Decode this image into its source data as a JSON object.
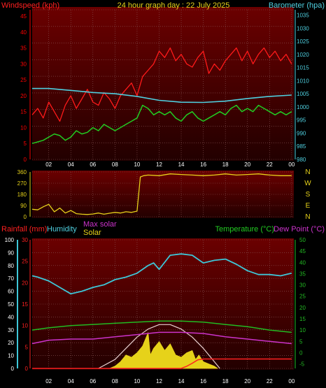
{
  "colors": {
    "background": "#000000",
    "panel_top": "#6b0000",
    "panel_bottom": "#220000",
    "grid": "#8a5a5a",
    "wind": "#ff0000",
    "gust": "#ff1a1a",
    "barometer": "#4fd0e0",
    "green_line": "#22cc22",
    "direction": "#e6d21a",
    "humidity": "#3ec7d8",
    "temperature": "#22bb22",
    "dewpoint": "#cc33cc",
    "solar": "#e6d21a",
    "max_solar": "#e8d0d0",
    "rain": "#ff2020",
    "time_axis": "#ffffff"
  },
  "chart_data": [
    {
      "type": "line",
      "title": "24 hour graph day : 22 July 2025",
      "left_label": "Windspeed (kph)",
      "right_label": "Barometer (hpa)",
      "y_left_ticks": [
        "0",
        "5",
        "10",
        "15",
        "20",
        "25",
        "30",
        "35",
        "40",
        "45"
      ],
      "y_right_ticks": [
        "980",
        "985",
        "990",
        "995",
        "1000",
        "1005",
        "1010",
        "1015",
        "1020",
        "1025",
        "1030",
        "1035"
      ],
      "ylim_left": [
        0,
        47
      ],
      "ylim_right": [
        980,
        1037
      ],
      "x_ticks": [
        "02",
        "04",
        "06",
        "08",
        "10",
        "12",
        "14",
        "16",
        "18",
        "20",
        "22",
        "00"
      ],
      "xlim_hours": [
        0.5,
        24.2
      ],
      "grid": true,
      "series": [
        {
          "key": "gust",
          "hours": [
            0.5,
            1,
            1.5,
            2,
            2.5,
            3,
            3.5,
            4,
            4.5,
            5,
            5.5,
            6,
            6.5,
            7,
            7.5,
            8,
            8.5,
            9,
            9.5,
            10,
            10.5,
            11,
            11.5,
            12,
            12.5,
            13,
            13.5,
            14,
            14.5,
            15,
            15.5,
            16,
            16.5,
            17,
            17.5,
            18,
            18.5,
            19,
            19.5,
            20,
            20.5,
            21,
            21.5,
            22,
            22.5,
            23,
            23.5,
            24
          ],
          "values": [
            14,
            16,
            13,
            18,
            15,
            12,
            17,
            20,
            16,
            19,
            22,
            18,
            17,
            21,
            19,
            16,
            20,
            22,
            24,
            20,
            26,
            28,
            30,
            34,
            32,
            35,
            31,
            33,
            30,
            29,
            32,
            34,
            27,
            30,
            28,
            31,
            33,
            35,
            31,
            34,
            30,
            33,
            35,
            32,
            34,
            31,
            33,
            30
          ]
        },
        {
          "key": "green",
          "hours": [
            0.5,
            1,
            1.5,
            2,
            2.5,
            3,
            3.5,
            4,
            4.5,
            5,
            5.5,
            6,
            6.5,
            7,
            7.5,
            8,
            8.5,
            9,
            9.5,
            10,
            10.5,
            11,
            11.5,
            12,
            12.5,
            13,
            13.5,
            14,
            14.5,
            15,
            15.5,
            16,
            16.5,
            17,
            17.5,
            18,
            18.5,
            19,
            19.5,
            20,
            20.5,
            21,
            21.5,
            22,
            22.5,
            23,
            23.5,
            24
          ],
          "values": [
            5,
            5.5,
            6,
            7,
            8,
            7.5,
            6,
            7,
            9,
            8,
            8.5,
            10,
            9,
            11,
            10,
            9,
            10,
            11,
            12,
            13,
            17,
            16,
            14,
            15,
            14,
            15,
            13,
            12,
            14,
            15,
            13,
            12,
            13,
            14,
            15,
            14,
            16,
            17,
            15,
            16,
            15,
            17,
            16,
            15,
            14,
            15,
            14,
            15
          ]
        },
        {
          "key": "barometer",
          "hours": [
            0.5,
            2,
            4,
            6,
            8,
            10,
            12,
            14,
            16,
            18,
            20,
            22,
            24
          ],
          "values": [
            1007,
            1007,
            1006.3,
            1005.5,
            1005,
            1004,
            1002.5,
            1001.8,
            1001.7,
            1002.2,
            1003.2,
            1004,
            1004.5
          ]
        }
      ]
    },
    {
      "type": "line",
      "ylabel": "Wind direction",
      "y_ticks": [
        "0",
        "90",
        "180",
        "270",
        "360"
      ],
      "ylim": [
        0,
        360
      ],
      "direction_letters": [
        "N",
        "W",
        "S",
        "E",
        "N"
      ],
      "x_ticks": [
        "02",
        "04",
        "06",
        "08",
        "10",
        "12",
        "14",
        "16",
        "18",
        "20",
        "22",
        "00"
      ],
      "xlim_hours": [
        0.5,
        24.2
      ],
      "grid": true,
      "series": [
        {
          "key": "direction",
          "hours": [
            0.5,
            1,
            1.5,
            2,
            2.5,
            3,
            3.5,
            4,
            4.5,
            5,
            5.5,
            6,
            6.5,
            7,
            7.5,
            8,
            8.5,
            9,
            9.5,
            10,
            10.3,
            10.6,
            11,
            12,
            13,
            14,
            15,
            16,
            17,
            18,
            19,
            20,
            21,
            22,
            23,
            24
          ],
          "values": [
            60,
            55,
            80,
            100,
            40,
            70,
            30,
            50,
            25,
            20,
            18,
            22,
            30,
            20,
            28,
            35,
            30,
            40,
            35,
            45,
            320,
            330,
            335,
            330,
            345,
            340,
            335,
            330,
            335,
            345,
            335,
            340,
            345,
            335,
            330,
            330
          ]
        }
      ]
    },
    {
      "type": "line",
      "left_labels": [
        "Rainfall (mm)",
        "Humidity"
      ],
      "middle_labels": [
        "Max solar",
        "Solar"
      ],
      "right_labels": [
        "Temperature (°C)",
        "Dew Point (°C)"
      ],
      "y_rain_ticks": [
        "0",
        "5",
        "10",
        "15",
        "20",
        "25",
        "30"
      ],
      "y_humidity_ticks": [
        "0",
        "10",
        "20",
        "30",
        "40",
        "50",
        "60",
        "70",
        "80",
        "90",
        "100"
      ],
      "y_temp_ticks": [
        "-5",
        "0",
        "5",
        "10",
        "15",
        "20",
        "25",
        "30",
        "35",
        "40",
        "45",
        "50"
      ],
      "ylim_rain": [
        0,
        30
      ],
      "ylim_humidity": [
        0,
        100
      ],
      "ylim_temp": [
        -7,
        50
      ],
      "x_ticks": [
        "02",
        "04",
        "06",
        "08",
        "10",
        "12",
        "14",
        "16",
        "18",
        "20",
        "22",
        "00"
      ],
      "xlim_hours": [
        0.5,
        24.2
      ],
      "grid": true,
      "series": [
        {
          "key": "humidity",
          "hours": [
            0.5,
            1,
            2,
            3,
            4,
            5,
            6,
            7,
            8,
            9,
            10,
            11,
            11.5,
            12,
            13,
            14,
            15,
            16,
            17,
            18,
            19,
            20,
            21,
            22,
            23,
            24
          ],
          "values": [
            72,
            71,
            68,
            63,
            58,
            60,
            63,
            65,
            69,
            71,
            74,
            80,
            82,
            77,
            88,
            89,
            88,
            82,
            84,
            85,
            81,
            76,
            73,
            73,
            72,
            74
          ]
        },
        {
          "key": "temperature",
          "hours": [
            0.5,
            2,
            4,
            6,
            8,
            10,
            12,
            14,
            16,
            18,
            20,
            22,
            24
          ],
          "values": [
            10,
            11,
            12,
            12.5,
            13,
            13.5,
            14,
            14,
            13.5,
            12.5,
            11.5,
            10,
            9
          ]
        },
        {
          "key": "dewpoint",
          "hours": [
            0.5,
            2,
            4,
            6,
            8,
            10,
            12,
            14,
            16,
            18,
            20,
            22,
            24
          ],
          "values": [
            4,
            5.5,
            6,
            6,
            7,
            8,
            9,
            9,
            8.5,
            7,
            6,
            5,
            4
          ]
        },
        {
          "key": "max_solar",
          "hours": [
            6.5,
            8,
            9,
            10,
            11,
            12,
            13,
            14,
            15,
            16,
            17,
            17.5
          ],
          "values": [
            0,
            0.2,
            0.45,
            0.7,
            0.88,
            0.98,
            0.98,
            0.88,
            0.7,
            0.45,
            0.15,
            0
          ]
        },
        {
          "key": "solar",
          "hours": [
            7.5,
            8,
            8.5,
            9,
            9.5,
            10,
            10.5,
            11,
            11.2,
            11.5,
            12,
            12.5,
            13,
            13.5,
            14,
            14.5,
            15,
            15.3,
            15.6,
            16,
            16.5,
            17,
            17.3
          ],
          "values": [
            0,
            0.05,
            0.15,
            0.3,
            0.25,
            0.35,
            0.5,
            0.8,
            0.3,
            0.45,
            0.6,
            0.4,
            0.55,
            0.3,
            0.25,
            0.35,
            0.4,
            0.2,
            0.3,
            0.15,
            0.1,
            0.05,
            0
          ]
        },
        {
          "key": "rain",
          "hours": [
            0.5,
            14,
            14.5,
            15,
            15.5,
            16,
            24
          ],
          "values": [
            0,
            0,
            0.5,
            1.2,
            2,
            2.2,
            2.2
          ]
        }
      ]
    }
  ]
}
